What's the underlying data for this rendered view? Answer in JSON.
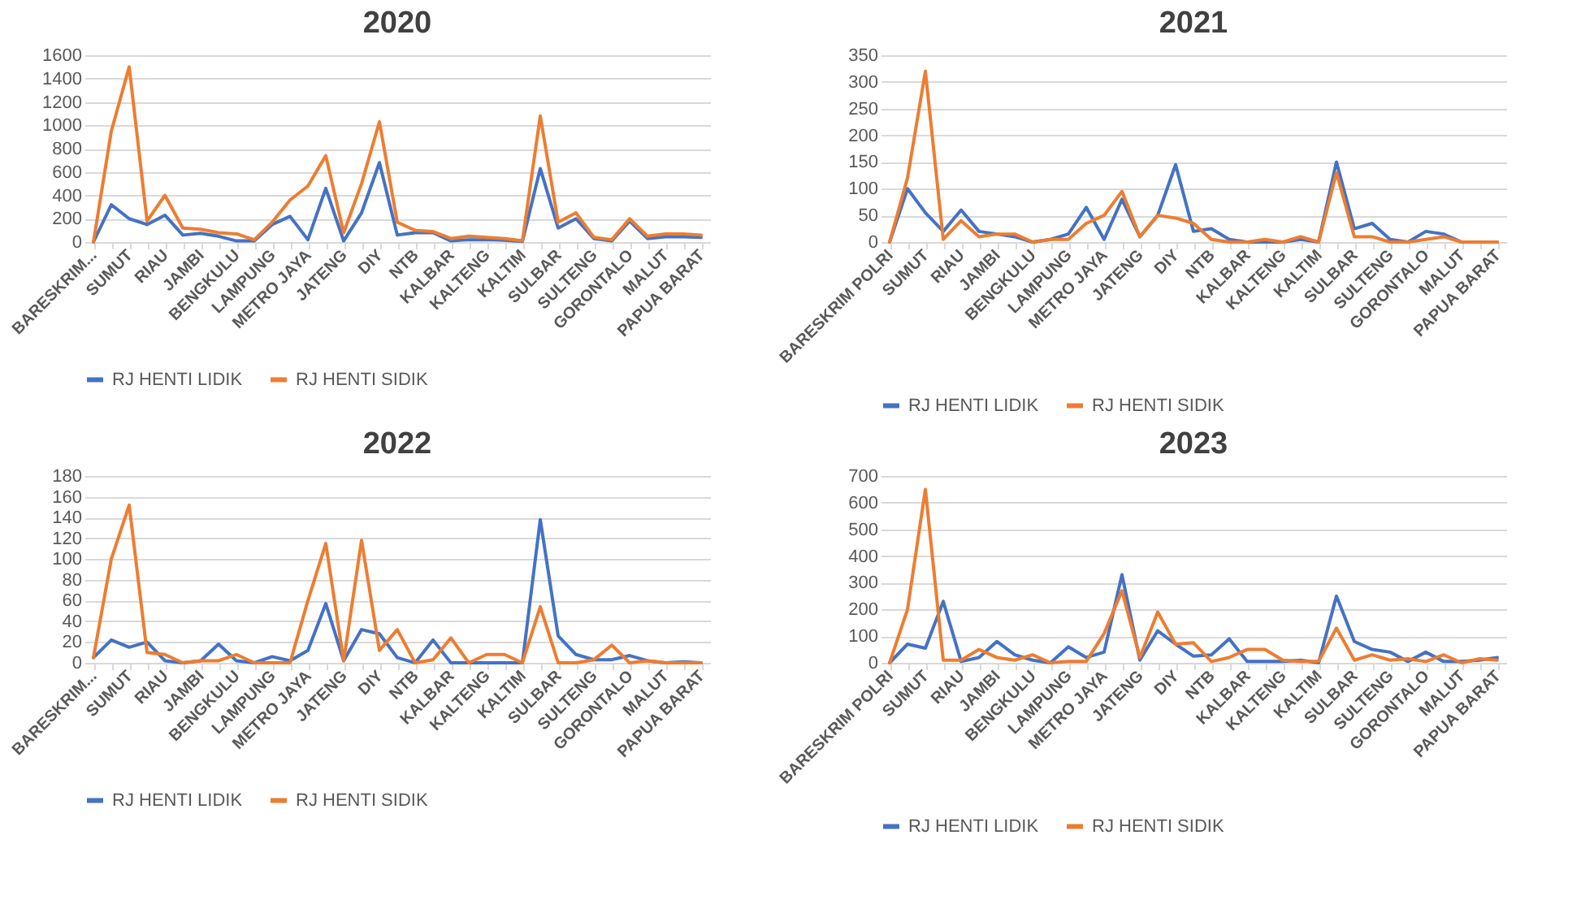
{
  "chart_data": [
    {
      "type": "line",
      "title": "2020",
      "categories": [
        "BARESKRIM...",
        null,
        "SUMUT",
        null,
        "RIAU",
        null,
        "JAMBI",
        null,
        "BENGKULU",
        null,
        "LAMPUNG",
        null,
        "METRO JAYA",
        null,
        "JATENG",
        null,
        "DIY",
        null,
        "NTB",
        null,
        "KALBAR",
        null,
        "KALTENG",
        null,
        "KALTIM",
        null,
        "SULBAR",
        null,
        "SULTENG",
        null,
        "GORONTALO",
        null,
        "MALUT",
        null,
        "PAPUA BARAT"
      ],
      "ylim": [
        0,
        1600
      ],
      "yticks": [
        0,
        200,
        400,
        600,
        800,
        1000,
        1200,
        1400,
        1600
      ],
      "grid": "y",
      "legend": "bottom",
      "series": [
        {
          "name": "RJ HENTI LIDIK",
          "color": "#4472c4",
          "values": [
            0,
            320,
            200,
            150,
            230,
            60,
            75,
            50,
            10,
            10,
            150,
            220,
            20,
            460,
            10,
            250,
            680,
            60,
            80,
            80,
            10,
            20,
            20,
            15,
            5,
            630,
            120,
            200,
            30,
            10,
            180,
            30,
            45,
            45,
            40
          ]
        },
        {
          "name": "RJ HENTI SIDIK",
          "color": "#ed7d31",
          "values": [
            0,
            950,
            1500,
            180,
            400,
            120,
            110,
            80,
            70,
            20,
            170,
            360,
            480,
            740,
            80,
            500,
            1030,
            170,
            100,
            90,
            30,
            50,
            40,
            30,
            10,
            1080,
            170,
            250,
            40,
            20,
            200,
            50,
            70,
            70,
            60
          ]
        }
      ]
    },
    {
      "type": "line",
      "title": "2021",
      "categories": [
        "BARESKRIM POLRI",
        null,
        "SUMUT",
        null,
        "RIAU",
        null,
        "JAMBI",
        null,
        "BENGKULU",
        null,
        "LAMPUNG",
        null,
        "METRO JAYA",
        null,
        "JATENG",
        null,
        "DIY",
        null,
        "NTB",
        null,
        "KALBAR",
        null,
        "KALTENG",
        null,
        "KALTIM",
        null,
        "SULBAR",
        null,
        "SULTENG",
        null,
        "GORONTALO",
        null,
        "MALUT",
        null,
        "PAPUA BARAT"
      ],
      "ylim": [
        0,
        350
      ],
      "yticks": [
        0,
        50,
        100,
        150,
        200,
        250,
        300,
        350
      ],
      "grid": "y",
      "legend": "bottom",
      "series": [
        {
          "name": "RJ HENTI LIDIK",
          "color": "#4472c4",
          "values": [
            0,
            100,
            55,
            20,
            60,
            20,
            15,
            10,
            0,
            5,
            15,
            65,
            5,
            80,
            10,
            50,
            145,
            20,
            25,
            5,
            0,
            0,
            0,
            5,
            0,
            150,
            25,
            35,
            5,
            0,
            20,
            15,
            0,
            0,
            0
          ]
        },
        {
          "name": "RJ HENTI SIDIK",
          "color": "#ed7d31",
          "values": [
            0,
            120,
            320,
            5,
            40,
            10,
            15,
            15,
            0,
            5,
            5,
            35,
            50,
            95,
            10,
            50,
            45,
            35,
            5,
            0,
            0,
            5,
            0,
            10,
            0,
            130,
            10,
            10,
            0,
            0,
            5,
            10,
            0,
            0,
            0
          ]
        }
      ]
    },
    {
      "type": "line",
      "title": "2022",
      "categories": [
        "BARESKRIM...",
        null,
        "SUMUT",
        null,
        "RIAU",
        null,
        "JAMBI",
        null,
        "BENGKULU",
        null,
        "LAMPUNG",
        null,
        "METRO JAYA",
        null,
        "JATENG",
        null,
        "DIY",
        null,
        "NTB",
        null,
        "KALBAR",
        null,
        "KALTENG",
        null,
        "KALTIM",
        null,
        "SULBAR",
        null,
        "SULTENG",
        null,
        "GORONTALO",
        null,
        "MALUT",
        null,
        "PAPUA BARAT"
      ],
      "ylim": [
        0,
        180
      ],
      "yticks": [
        0,
        20,
        40,
        60,
        80,
        100,
        120,
        140,
        160,
        180
      ],
      "grid": "y",
      "legend": "bottom",
      "series": [
        {
          "name": "RJ HENTI LIDIK",
          "color": "#4472c4",
          "values": [
            5,
            22,
            15,
            20,
            2,
            0,
            2,
            18,
            2,
            0,
            6,
            2,
            12,
            57,
            2,
            32,
            28,
            5,
            0,
            22,
            0,
            0,
            0,
            0,
            0,
            138,
            26,
            8,
            3,
            3,
            7,
            2,
            0,
            1,
            0
          ]
        },
        {
          "name": "RJ HENTI SIDIK",
          "color": "#ed7d31",
          "values": [
            5,
            100,
            152,
            10,
            8,
            0,
            2,
            2,
            8,
            0,
            0,
            0,
            60,
            115,
            2,
            118,
            12,
            32,
            0,
            3,
            24,
            0,
            8,
            8,
            0,
            54,
            0,
            0,
            3,
            17,
            0,
            2,
            0,
            0,
            0
          ]
        }
      ]
    },
    {
      "type": "line",
      "title": "2023",
      "categories": [
        "BARESKRIM POLRI",
        null,
        "SUMUT",
        null,
        "RIAU",
        null,
        "JAMBI",
        null,
        "BENGKULU",
        null,
        "LAMPUNG",
        null,
        "METRO JAYA",
        null,
        "JATENG",
        null,
        "DIY",
        null,
        "NTB",
        null,
        "KALBAR",
        null,
        "KALTENG",
        null,
        "KALTIM",
        null,
        "SULBAR",
        null,
        "SULTENG",
        null,
        "GORONTALO",
        null,
        "MALUT",
        null,
        "PAPUA BARAT"
      ],
      "ylim": [
        0,
        700
      ],
      "yticks": [
        0,
        100,
        200,
        300,
        400,
        500,
        600,
        700
      ],
      "grid": "y",
      "legend": "bottom",
      "series": [
        {
          "name": "RJ HENTI LIDIK",
          "color": "#4472c4",
          "values": [
            0,
            70,
            55,
            230,
            5,
            20,
            80,
            30,
            10,
            0,
            60,
            20,
            40,
            330,
            10,
            120,
            70,
            25,
            30,
            90,
            5,
            5,
            5,
            10,
            0,
            250,
            80,
            50,
            40,
            5,
            40,
            5,
            5,
            10,
            20
          ]
        },
        {
          "name": "RJ HENTI SIDIK",
          "color": "#ed7d31",
          "values": [
            0,
            200,
            650,
            10,
            10,
            50,
            20,
            10,
            30,
            0,
            5,
            5,
            110,
            270,
            20,
            190,
            70,
            75,
            5,
            20,
            50,
            50,
            10,
            5,
            5,
            130,
            10,
            30,
            10,
            15,
            5,
            30,
            0,
            15,
            10
          ]
        }
      ]
    }
  ]
}
